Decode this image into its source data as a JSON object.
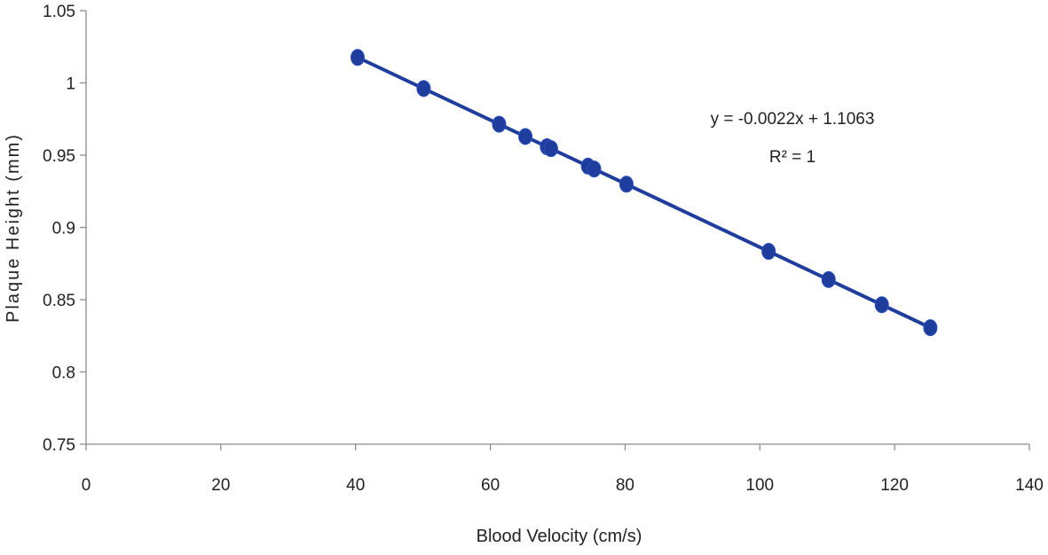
{
  "chart_data": {
    "type": "scatter",
    "xlabel": "Blood Velocity (cm/s)",
    "ylabel": "Plaque Height (mm)",
    "xlim": [
      0,
      140
    ],
    "ylim": [
      0.75,
      1.05
    ],
    "xticks": [
      0,
      20,
      40,
      60,
      80,
      100,
      120,
      140
    ],
    "xtick_labels": [
      "0",
      "20",
      "40",
      "60",
      "80",
      "100",
      "120",
      "140"
    ],
    "yticks": [
      0.75,
      0.8,
      0.85,
      0.9,
      0.95,
      1.0,
      1.05
    ],
    "ytick_labels": [
      "0.75",
      "0.8",
      "0.85",
      "0.9",
      "0.95",
      "1",
      "1.05"
    ],
    "grid": false,
    "series": [
      {
        "x": [
          40.3,
          50.1,
          61.3,
          65.2,
          68.4,
          69.0,
          74.5,
          75.4,
          80.2,
          101.3,
          110.2,
          118.1,
          125.3
        ],
        "y": [
          1.0176,
          0.9961,
          0.9714,
          0.9629,
          0.9558,
          0.9545,
          0.9424,
          0.9404,
          0.9299,
          0.8834,
          0.8639,
          0.8465,
          0.8306
        ],
        "color": "#1f3d9c"
      }
    ],
    "trendline": {
      "slope": -0.0022,
      "intercept": 1.1063,
      "x_range": [
        40.3,
        125.3
      ],
      "color": "#1f3d9c"
    },
    "annotations": {
      "equation": "y = -0.0022x + 1.1063",
      "r_squared": "R² = 1"
    }
  }
}
